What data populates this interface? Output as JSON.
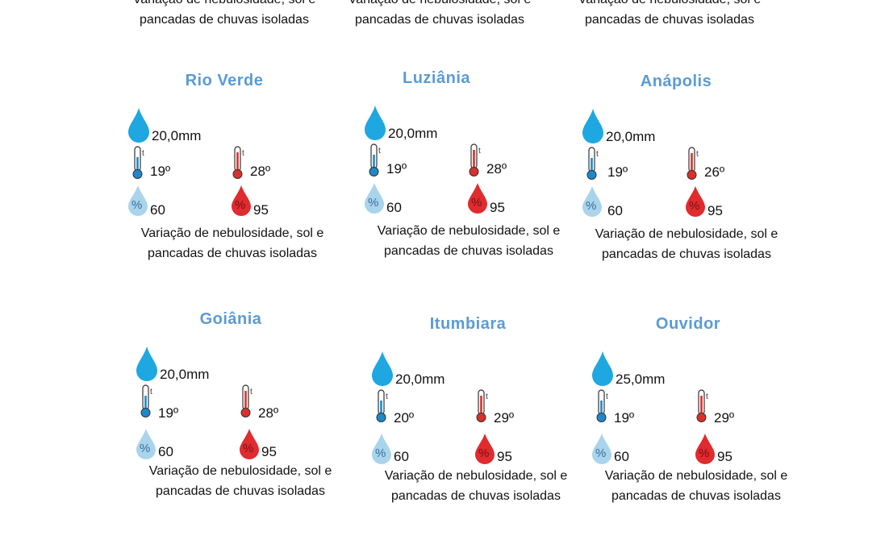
{
  "top_row": [
    "Variação de nebulosidade, sol e pancadas de chuvas isoladas",
    "Variação de nebulosidade, sol e pancadas de chuvas isoladas",
    "Variação de nebulosidade, sol e pancadas de chuvas isoladas"
  ],
  "cities": [
    {
      "name": "Rio Verde",
      "rain": "20,0mm",
      "tmin": "19º",
      "tmax": "28º",
      "hmin": "60",
      "hmax": "95",
      "desc": "Variação de nebulosidade, sol e pancadas de chuvas isoladas"
    },
    {
      "name": "Luziânia",
      "rain": "20,0mm",
      "tmin": "19º",
      "tmax": "28º",
      "hmin": "60",
      "hmax": "95",
      "desc": "Variação de nebulosidade, sol e pancadas de chuvas isoladas"
    },
    {
      "name": "Anápolis",
      "rain": "20,0mm",
      "tmin": "19º",
      "tmax": "26º",
      "hmin": "60",
      "hmax": "95",
      "desc": "Variação de nebulosidade, sol e pancadas de chuvas isoladas"
    },
    {
      "name": "Goiânia",
      "rain": "20,0mm",
      "tmin": "19º",
      "tmax": "28º",
      "hmin": "60",
      "hmax": "95",
      "desc": "Variação de nebulosidade, sol e pancadas de chuvas isoladas"
    },
    {
      "name": "Itumbiara",
      "rain": "20,0mm",
      "tmin": "20º",
      "tmax": "29º",
      "hmin": "60",
      "hmax": "95",
      "desc": "Variação de nebulosidade, sol e pancadas de chuvas isoladas"
    },
    {
      "name": "Ouvidor",
      "rain": "25,0mm",
      "tmin": "19º",
      "tmax": "29º",
      "hmin": "60",
      "hmax": "95",
      "desc": "Variação de nebulosidade, sol e pancadas de chuvas isoladas"
    }
  ],
  "icons": {
    "rain": "raindrop-icon",
    "temp_min": "thermometer-cold-icon",
    "temp_max": "thermometer-hot-icon",
    "humidity_min": "humidity-min-icon",
    "humidity_max": "humidity-max-icon"
  },
  "colors": {
    "city_title": "#5b9bd5",
    "rain_drop": "#1ea7e1",
    "cold": "#1e88c8",
    "hot": "#d9302c",
    "humidity_min": "#a9d4ec",
    "humidity_max": "#e02b2f"
  }
}
